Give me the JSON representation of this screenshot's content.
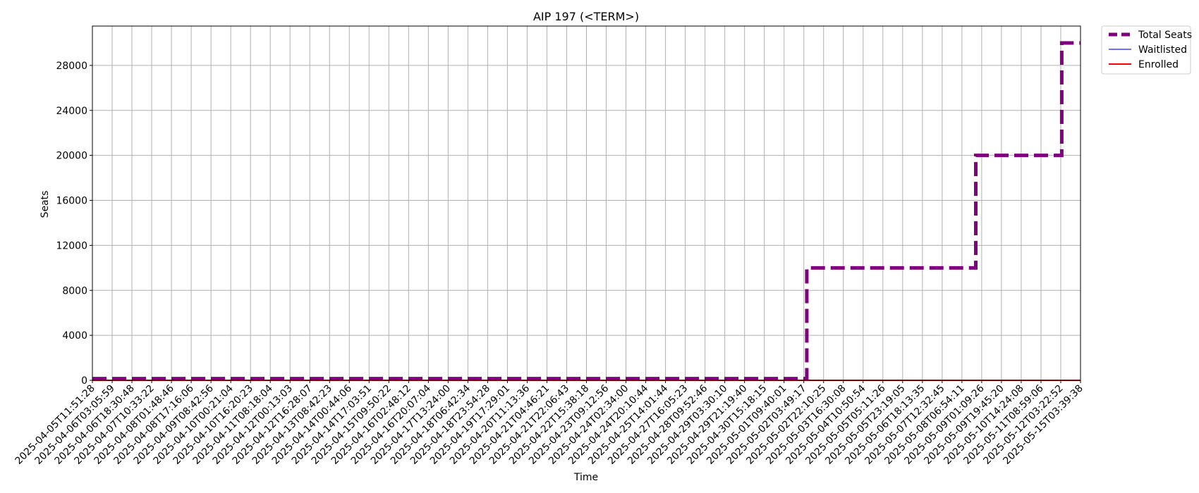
{
  "chart_data": {
    "type": "line",
    "title": "AIP 197 (<TERM>)",
    "xlabel": "Time",
    "ylabel": "Seats",
    "x_ticks": [
      "2025-04-05T11:51:28",
      "2025-04-06T03:05:59",
      "2025-04-06T18:30:48",
      "2025-04-07T10:33:22",
      "2025-04-08T01:48:46",
      "2025-04-08T17:16:06",
      "2025-04-09T08:42:56",
      "2025-04-10T00:21:04",
      "2025-04-10T16:20:23",
      "2025-04-11T08:18:04",
      "2025-04-12T00:13:03",
      "2025-04-12T16:28:07",
      "2025-04-13T08:42:23",
      "2025-04-14T00:44:06",
      "2025-04-14T17:03:51",
      "2025-04-15T09:50:22",
      "2025-04-16T02:48:12",
      "2025-04-16T20:07:04",
      "2025-04-17T13:24:00",
      "2025-04-18T06:42:34",
      "2025-04-18T23:54:28",
      "2025-04-19T17:29:01",
      "2025-04-20T11:13:36",
      "2025-04-21T04:46:21",
      "2025-04-21T22:06:43",
      "2025-04-22T15:38:18",
      "2025-04-23T09:12:56",
      "2025-04-24T02:34:00",
      "2025-04-24T20:10:44",
      "2025-04-25T14:01:44",
      "2025-04-27T16:05:23",
      "2025-04-28T09:52:46",
      "2025-04-29T03:30:10",
      "2025-04-29T21:19:40",
      "2025-04-30T15:18:15",
      "2025-05-01T09:40:01",
      "2025-05-02T03:49:17",
      "2025-05-02T22:10:25",
      "2025-05-03T16:30:08",
      "2025-05-04T10:50:54",
      "2025-05-05T05:11:26",
      "2025-05-05T23:19:05",
      "2025-05-06T18:13:35",
      "2025-05-07T12:32:45",
      "2025-05-08T06:54:11",
      "2025-05-09T01:09:26",
      "2025-05-09T19:45:20",
      "2025-05-10T14:24:08",
      "2025-05-11T08:59:06",
      "2025-05-12T03:22:52",
      "2025-05-15T03:39:38"
    ],
    "y_ticks": [
      "0",
      "4000",
      "8000",
      "12000",
      "16000",
      "20000",
      "24000",
      "28000"
    ],
    "ylim": [
      0,
      31500
    ],
    "grid": true,
    "legend_position": "outside-top-right",
    "series": [
      {
        "name": "Total Seats",
        "color": "#800080",
        "style": "dashed",
        "x": [
          0,
          36.15,
          36.15,
          44.7,
          44.7,
          49.05,
          49.05,
          50
        ],
        "y": [
          150,
          150,
          10000,
          10000,
          20000,
          20000,
          30000,
          30000
        ]
      },
      {
        "name": "Waitlisted",
        "color": "#4040ff",
        "style": "solid",
        "x": [
          0,
          50
        ],
        "y": [
          0,
          0
        ]
      },
      {
        "name": "Enrolled",
        "color": "#ff0000",
        "style": "solid",
        "x": [
          0,
          50
        ],
        "y": [
          0,
          0
        ]
      }
    ]
  }
}
